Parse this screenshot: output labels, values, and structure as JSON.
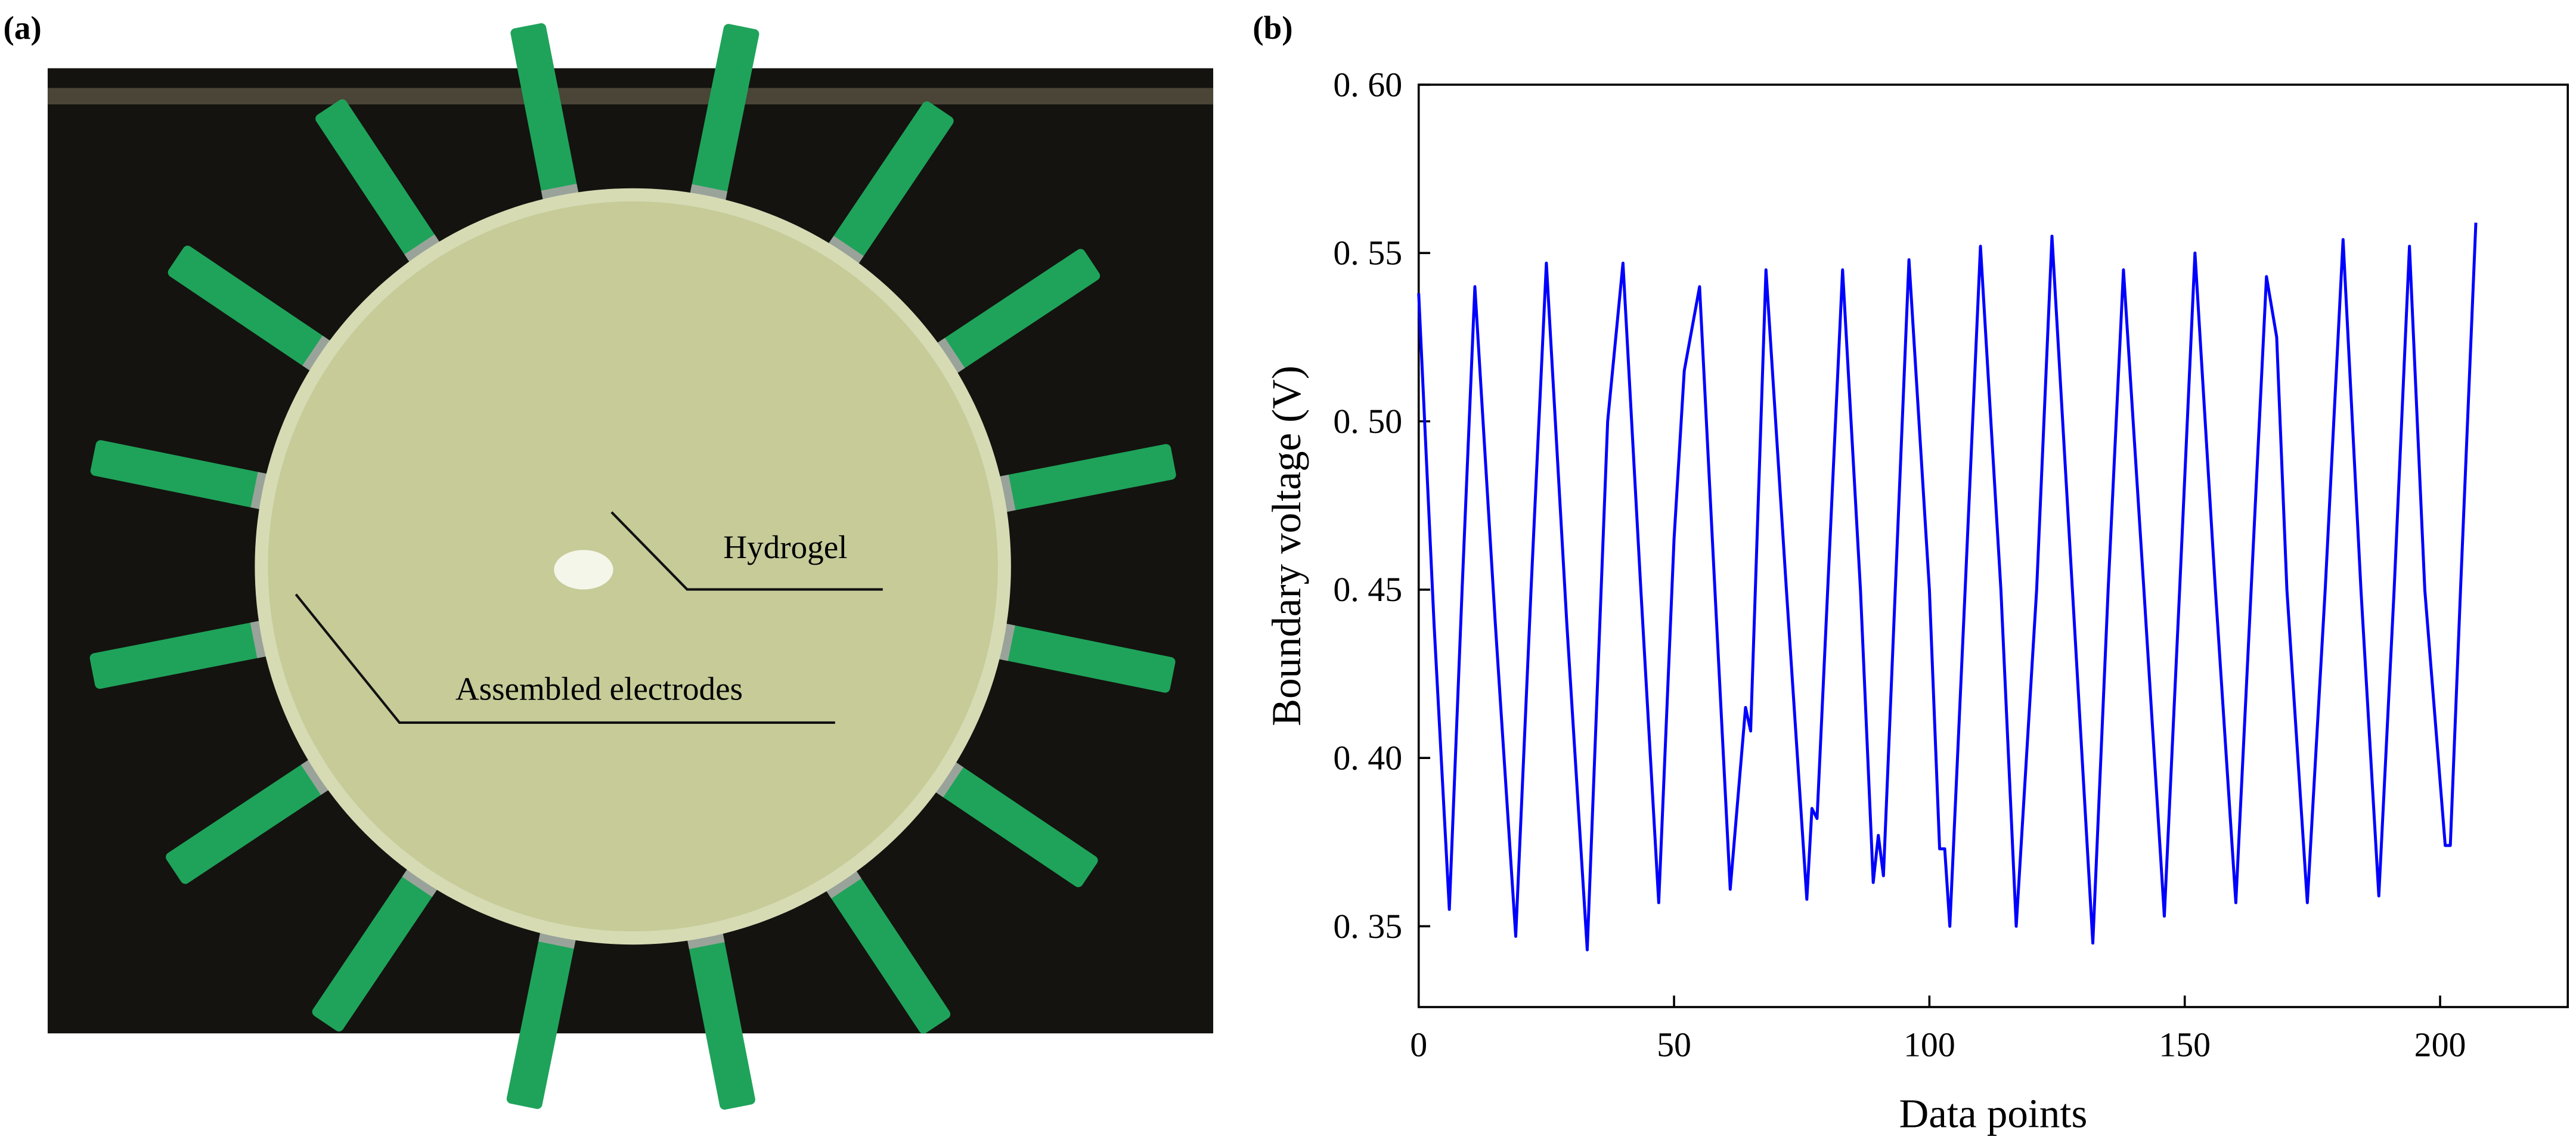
{
  "panel_labels": [
    "(a)",
    "(b)"
  ],
  "photo": {
    "annotations": [
      "Hydrogel",
      "Assembled electrodes"
    ]
  },
  "chart_data": {
    "type": "line",
    "xlabel": "Data points",
    "ylabel": "Boundary voltage (V)",
    "xlim": [
      0,
      225
    ],
    "ylim": [
      0.326,
      0.6
    ],
    "xticks": [
      0,
      50,
      100,
      150,
      200
    ],
    "yticks": [
      {
        "value": 0.35,
        "label": "0. 35"
      },
      {
        "value": 0.4,
        "label": "0. 40"
      },
      {
        "value": 0.45,
        "label": "0. 45"
      },
      {
        "value": 0.5,
        "label": "0. 50"
      },
      {
        "value": 0.55,
        "label": "0. 55"
      },
      {
        "value": 0.6,
        "label": "0. 60"
      }
    ],
    "x": [
      0,
      3,
      6,
      8.5,
      11,
      15,
      19,
      22,
      25,
      29,
      33,
      37,
      40,
      43.5,
      47,
      50,
      52,
      55,
      58,
      61,
      64,
      65,
      68,
      72,
      76,
      77,
      78,
      83,
      86.5,
      89,
      90,
      91,
      96,
      100,
      102,
      103,
      104,
      107,
      110,
      114,
      117,
      121,
      124,
      128,
      132,
      135,
      138,
      142,
      146,
      149,
      152,
      156,
      160,
      163,
      166,
      168,
      170,
      174,
      177.5,
      181,
      184.5,
      188,
      191,
      194,
      197,
      201,
      202,
      204,
      207
    ],
    "series": [
      {
        "name": "Boundary voltage",
        "color": "#0000ff",
        "values": [
          0.538,
          0.44,
          0.355,
          0.45,
          0.54,
          0.44,
          0.347,
          0.45,
          0.547,
          0.44,
          0.343,
          0.5,
          0.547,
          0.45,
          0.357,
          0.465,
          0.515,
          0.54,
          0.45,
          0.361,
          0.415,
          0.408,
          0.545,
          0.45,
          0.358,
          0.385,
          0.382,
          0.545,
          0.45,
          0.363,
          0.377,
          0.365,
          0.548,
          0.45,
          0.373,
          0.373,
          0.35,
          0.45,
          0.552,
          0.45,
          0.35,
          0.45,
          0.555,
          0.45,
          0.345,
          0.45,
          0.545,
          0.45,
          0.353,
          0.45,
          0.55,
          0.45,
          0.357,
          0.45,
          0.543,
          0.525,
          0.45,
          0.357,
          0.45,
          0.554,
          0.45,
          0.359,
          0.45,
          0.552,
          0.45,
          0.374,
          0.374,
          0.45,
          0.559
        ]
      }
    ]
  }
}
